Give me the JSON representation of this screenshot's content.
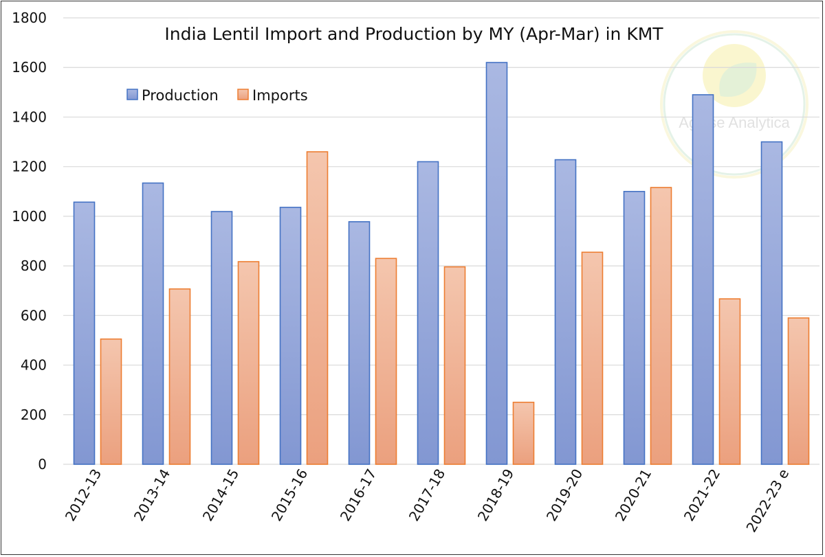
{
  "chart_data": {
    "type": "bar",
    "title": "India Lentil Import and Production by MY (Apr-Mar) in KMT",
    "categories": [
      "2012-13",
      "2013-14",
      "2014-15",
      "2015-16",
      "2016-17",
      "2017-18",
      "2018-19",
      "2019-20",
      "2020-21",
      "2021-22",
      "2022-23 e"
    ],
    "series": [
      {
        "name": "Production",
        "values": [
          1057,
          1134,
          1019,
          1036,
          978,
          1220,
          1620,
          1228,
          1100,
          1490,
          1300
        ]
      },
      {
        "name": "Imports",
        "values": [
          505,
          707,
          817,
          1260,
          830,
          796,
          250,
          855,
          1116,
          667,
          590
        ]
      }
    ],
    "ylim": [
      0,
      1800
    ],
    "yticks": [
      0,
      200,
      400,
      600,
      800,
      1000,
      1200,
      1400,
      1600,
      1800
    ],
    "grid": true,
    "legend_position": "top-left",
    "colors": {
      "Production": {
        "top": "#aab8e2",
        "bottom": "#8297d2",
        "stroke": "#4472c4"
      },
      "Imports": {
        "top": "#f4c6ae",
        "bottom": "#eba07e",
        "stroke": "#ed7d31"
      }
    }
  },
  "watermark": {
    "text": "Agrilse Analytica"
  }
}
